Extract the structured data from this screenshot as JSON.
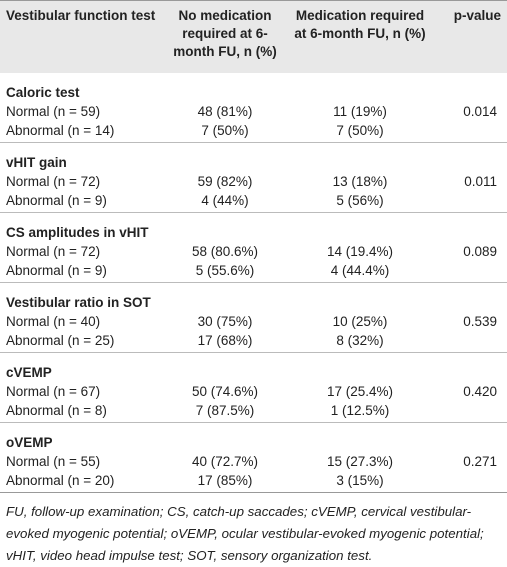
{
  "table": {
    "columns": [
      "Vestibular function test",
      "No medication required at 6-month FU, n (%)",
      "Medication required at 6-month FU, n (%)",
      "p-value"
    ],
    "groups": [
      {
        "title": "Caloric test",
        "p_value": "0.014",
        "rows": [
          [
            "Normal (n = 59)",
            "48 (81%)",
            "11 (19%)"
          ],
          [
            "Abnormal (n = 14)",
            "7 (50%)",
            "7 (50%)"
          ]
        ]
      },
      {
        "title": "vHIT gain",
        "p_value": "0.011",
        "rows": [
          [
            "Normal (n = 72)",
            "59 (82%)",
            "13 (18%)"
          ],
          [
            "Abnormal (n = 9)",
            "4 (44%)",
            "5 (56%)"
          ]
        ]
      },
      {
        "title": "CS amplitudes in vHIT",
        "p_value": "0.089",
        "rows": [
          [
            "Normal (n = 72)",
            "58 (80.6%)",
            "14 (19.4%)"
          ],
          [
            "Abnormal (n = 9)",
            "5 (55.6%)",
            "4 (44.4%)"
          ]
        ]
      },
      {
        "title": "Vestibular ratio in SOT",
        "p_value": "0.539",
        "rows": [
          [
            "Normal (n = 40)",
            "30 (75%)",
            "10 (25%)"
          ],
          [
            "Abnormal (n = 25)",
            "17 (68%)",
            "8 (32%)"
          ]
        ]
      },
      {
        "title": "cVEMP",
        "p_value": "0.420",
        "rows": [
          [
            "Normal (n = 67)",
            "50 (74.6%)",
            "17 (25.4%)"
          ],
          [
            "Abnormal (n = 8)",
            "7 (87.5%)",
            "1 (12.5%)"
          ]
        ]
      },
      {
        "title": "oVEMP",
        "p_value": "0.271",
        "rows": [
          [
            "Normal (n = 55)",
            "40 (72.7%)",
            "15 (27.3%)"
          ],
          [
            "Abnormal (n = 20)",
            "17 (85%)",
            "3 (15%)"
          ]
        ]
      }
    ],
    "footnote": "FU, follow-up examination; CS, catch-up saccades; cVEMP, cervical vestibular-evoked myogenic potential; oVEMP, ocular vestibular-evoked myogenic potential; vHIT, video head impulse test; SOT, sensory organization test."
  }
}
